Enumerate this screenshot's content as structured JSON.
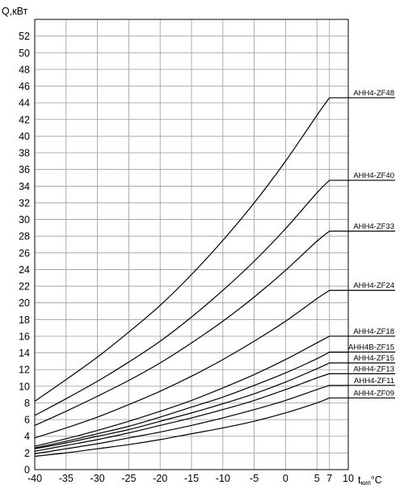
{
  "chart_data": {
    "type": "line",
    "title": "",
    "ylabel": "Q,кВт",
    "xlabel": "t кип °C",
    "xlabel_parts": {
      "main": "t",
      "sub": "кип",
      "unit": "°C"
    },
    "xlim": [
      -40,
      10
    ],
    "ylim": [
      0,
      54
    ],
    "x_ticks": [
      -40,
      -35,
      -30,
      -25,
      -20,
      -15,
      -10,
      -5,
      0,
      5,
      7,
      10
    ],
    "y_ticks": [
      0,
      2,
      4,
      6,
      8,
      10,
      12,
      14,
      16,
      18,
      20,
      22,
      24,
      26,
      28,
      30,
      32,
      34,
      36,
      38,
      40,
      42,
      44,
      46,
      48,
      50,
      52
    ],
    "grid": true,
    "legend": "labels at right end of curves",
    "series": [
      {
        "name": "AHH4-ZF48",
        "x": [
          -40,
          -35,
          -30,
          -25,
          -20,
          -15,
          -10,
          -5,
          0,
          5,
          7
        ],
        "values": [
          8.2,
          10.8,
          13.5,
          16.5,
          19.7,
          23.4,
          27.5,
          32.0,
          37.0,
          42.5,
          44.6
        ]
      },
      {
        "name": "AHH4-ZF40",
        "x": [
          -40,
          -35,
          -30,
          -25,
          -20,
          -15,
          -10,
          -5,
          0,
          5,
          7
        ],
        "values": [
          6.5,
          8.5,
          10.6,
          12.9,
          15.4,
          18.3,
          21.5,
          25.0,
          28.9,
          33.2,
          34.7
        ]
      },
      {
        "name": "AHH4-ZF33",
        "x": [
          -40,
          -35,
          -30,
          -25,
          -20,
          -15,
          -10,
          -5,
          0,
          5,
          7
        ],
        "values": [
          5.3,
          7.0,
          8.8,
          10.7,
          12.8,
          15.2,
          17.8,
          20.7,
          23.9,
          27.4,
          28.6
        ]
      },
      {
        "name": "AHH4-ZF24",
        "x": [
          -40,
          -35,
          -30,
          -25,
          -20,
          -15,
          -10,
          -5,
          0,
          5,
          7
        ],
        "values": [
          3.8,
          5.0,
          6.3,
          7.8,
          9.4,
          11.2,
          13.2,
          15.4,
          17.8,
          20.5,
          21.5
        ]
      },
      {
        "name": "AHH4-ZF18",
        "x": [
          -40,
          -35,
          -30,
          -25,
          -20,
          -15,
          -10,
          -5,
          0,
          5,
          7
        ],
        "values": [
          2.8,
          3.7,
          4.7,
          5.8,
          7.0,
          8.3,
          9.8,
          11.4,
          13.2,
          15.2,
          16.0
        ]
      },
      {
        "name": "AHH4B-ZF15",
        "x": [
          -40,
          -35,
          -30,
          -25,
          -20,
          -15,
          -10,
          -5,
          0,
          5,
          7
        ],
        "values": [
          2.6,
          3.4,
          4.3,
          5.2,
          6.3,
          7.5,
          8.7,
          10.1,
          11.6,
          13.3,
          14.1
        ]
      },
      {
        "name": "AHH4-ZF15",
        "x": [
          -40,
          -35,
          -30,
          -25,
          -20,
          -15,
          -10,
          -5,
          0,
          5,
          7
        ],
        "values": [
          2.5,
          3.2,
          4.0,
          4.8,
          5.8,
          6.8,
          7.9,
          9.1,
          10.5,
          12.1,
          12.8
        ]
      },
      {
        "name": "AHH4-ZF13",
        "x": [
          -40,
          -35,
          -30,
          -25,
          -20,
          -15,
          -10,
          -5,
          0,
          5,
          7
        ],
        "values": [
          2.2,
          2.9,
          3.6,
          4.4,
          5.3,
          6.2,
          7.2,
          8.3,
          9.6,
          11.0,
          11.5
        ]
      },
      {
        "name": "AHH4-ZF11",
        "x": [
          -40,
          -35,
          -30,
          -25,
          -20,
          -15,
          -10,
          -5,
          0,
          5,
          7
        ],
        "values": [
          1.9,
          2.5,
          3.1,
          3.8,
          4.5,
          5.3,
          6.2,
          7.2,
          8.3,
          9.6,
          10.1
        ]
      },
      {
        "name": "AHH4-ZF09",
        "x": [
          -40,
          -35,
          -30,
          -25,
          -20,
          -15,
          -10,
          -5,
          0,
          5,
          7
        ],
        "values": [
          1.6,
          2.0,
          2.5,
          3.0,
          3.6,
          4.3,
          5.0,
          5.8,
          6.8,
          8.0,
          8.6
        ]
      }
    ]
  }
}
